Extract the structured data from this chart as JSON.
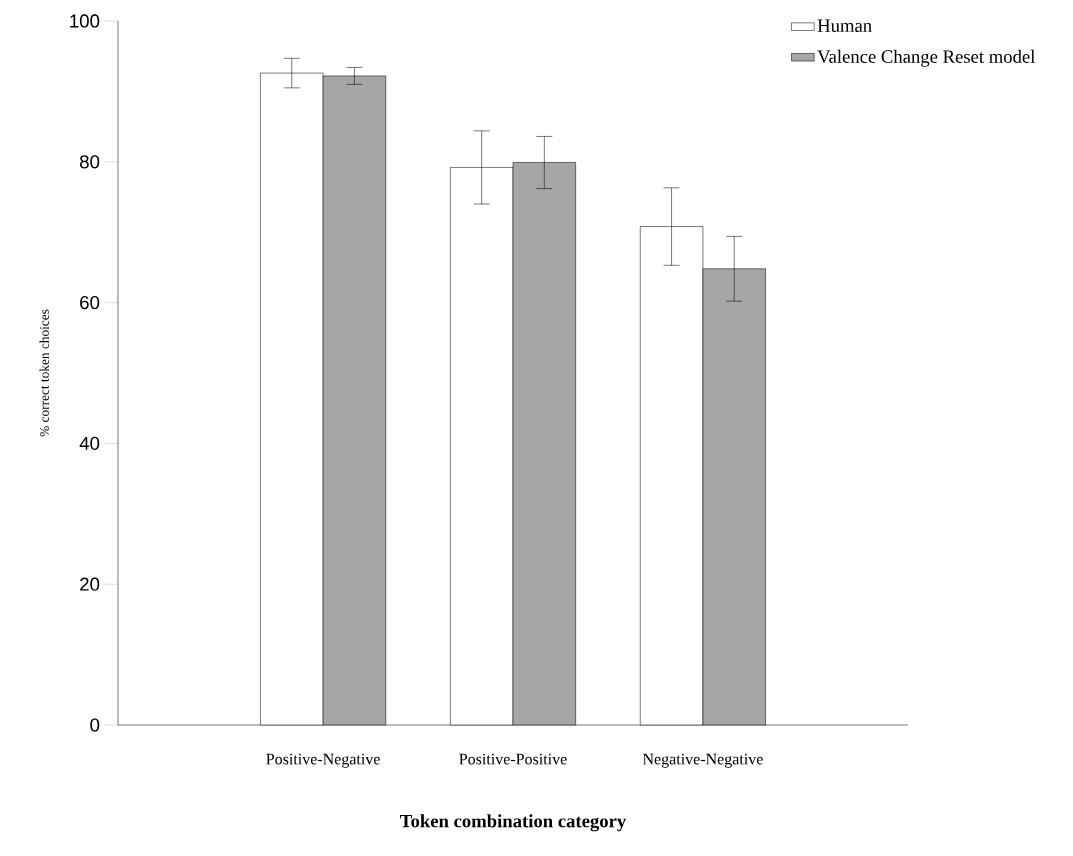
{
  "chart_data": {
    "type": "bar",
    "xlabel": "Token combination category",
    "ylabel": "% correct token choices",
    "categories": [
      "Positive-Negative",
      "Positive-Positive",
      "Negative-Negative"
    ],
    "series": [
      {
        "name": "Human",
        "color": "#ffffff",
        "values": [
          92.6,
          79.2,
          70.8
        ],
        "errors": [
          2.1,
          5.2,
          5.5
        ]
      },
      {
        "name": "Valence Change Reset model",
        "color": "#a6a6a6",
        "values": [
          92.2,
          79.9,
          64.8
        ],
        "errors": [
          1.2,
          3.7,
          4.6
        ]
      }
    ],
    "ylim": [
      0,
      100
    ],
    "yticks": [
      0,
      20,
      40,
      60,
      80,
      100
    ],
    "grid": false,
    "legend": "top right"
  }
}
